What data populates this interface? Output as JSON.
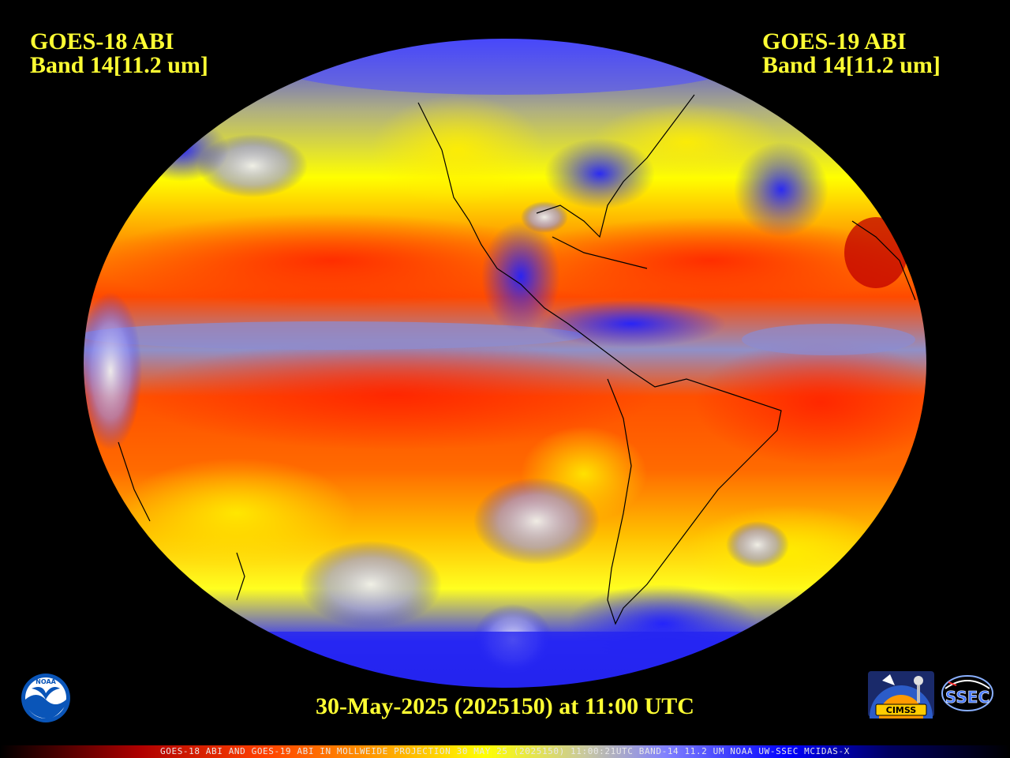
{
  "labels": {
    "left_line1": "GOES-18 ABI",
    "left_line2": "Band 14[11.2 um]",
    "right_line1": "GOES-19 ABI",
    "right_line2": "Band 14[11.2 um]"
  },
  "date_stamp": "30-May-2025 (2025150) at 11:00 UTC",
  "footer_text": "GOES-18 ABI AND GOES-19 ABI IN MOLLWEIDE PROJECTION 30 MAY 25 (2025150) 11:00:21UTC BAND-14 11.2 UM NOAA UW-SSEC MCIDAS-X",
  "logos": {
    "noaa": "NOAA",
    "cimss": "CIMSS",
    "ssec": "SSEC"
  },
  "colors": {
    "label_yellow": "#ffff33",
    "warm_red": "#ff2a00",
    "orange": "#ff8a00",
    "yellow": "#ffff00",
    "cloud_blue": "#2a2aff",
    "cloud_white": "#e0e0e0"
  }
}
